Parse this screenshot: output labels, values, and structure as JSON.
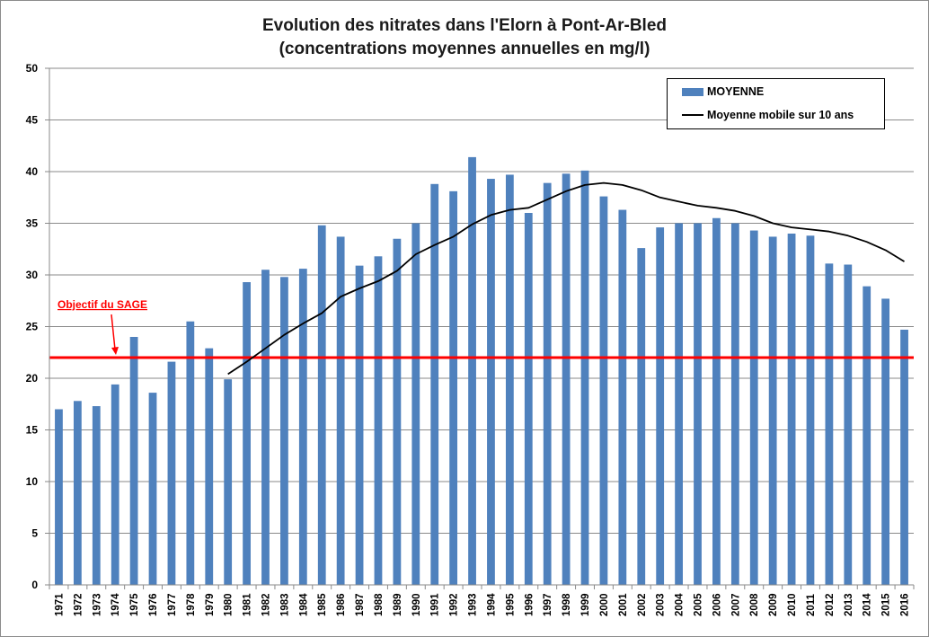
{
  "chart_data": {
    "type": "bar",
    "title_line1": "Evolution des nitrates dans l'Elorn à Pont-Ar-Bled",
    "title_line2": "(concentrations moyennes annuelles en mg/l)",
    "categories": [
      "1971",
      "1972",
      "1973",
      "1974",
      "1975",
      "1976",
      "1977",
      "1978",
      "1979",
      "1980",
      "1981",
      "1982",
      "1983",
      "1984",
      "1985",
      "1986",
      "1987",
      "1988",
      "1989",
      "1990",
      "1991",
      "1992",
      "1993",
      "1994",
      "1995",
      "1996",
      "1997",
      "1998",
      "1999",
      "2000",
      "2001",
      "2002",
      "2003",
      "2004",
      "2005",
      "2006",
      "2007",
      "2008",
      "2009",
      "2010",
      "2011",
      "2012",
      "2013",
      "2014",
      "2015",
      "2016"
    ],
    "series": [
      {
        "name": "MOYENNE",
        "type": "bar",
        "color": "#4f81bd",
        "values": [
          17.0,
          17.8,
          17.3,
          19.4,
          24.0,
          18.6,
          21.6,
          25.5,
          22.9,
          19.9,
          29.3,
          30.5,
          29.8,
          30.6,
          34.8,
          33.7,
          30.9,
          31.8,
          33.5,
          35.0,
          38.8,
          38.1,
          41.4,
          39.3,
          39.7,
          36.0,
          38.9,
          39.8,
          40.1,
          37.6,
          36.3,
          32.6,
          34.6,
          35.0,
          35.0,
          35.5,
          35.0,
          34.3,
          33.7,
          34.0,
          33.8,
          31.1,
          31.0,
          28.9,
          27.7,
          24.7
        ]
      },
      {
        "name": "Moyenne mobile sur 10 ans",
        "type": "line",
        "color": "#000000",
        "values": [
          null,
          null,
          null,
          null,
          null,
          null,
          null,
          null,
          null,
          20.4,
          21.6,
          22.9,
          24.2,
          25.3,
          26.3,
          27.9,
          28.7,
          29.4,
          30.4,
          32.0,
          32.9,
          33.7,
          34.9,
          35.8,
          36.3,
          36.5,
          37.3,
          38.1,
          38.7,
          38.9,
          38.7,
          38.2,
          37.5,
          37.1,
          36.7,
          36.5,
          36.2,
          35.7,
          35.0,
          34.6,
          34.4,
          34.2,
          33.8,
          33.2,
          32.4,
          31.3
        ]
      }
    ],
    "reference_line": {
      "label": "Objectif du SAGE",
      "value": 22,
      "color": "#ff0000"
    },
    "ylim": [
      0,
      50
    ],
    "yticks": [
      0,
      5,
      10,
      15,
      20,
      25,
      30,
      35,
      40,
      45,
      50
    ],
    "xlabel": "",
    "ylabel": "",
    "grid": true,
    "legend_position": "top-right"
  }
}
